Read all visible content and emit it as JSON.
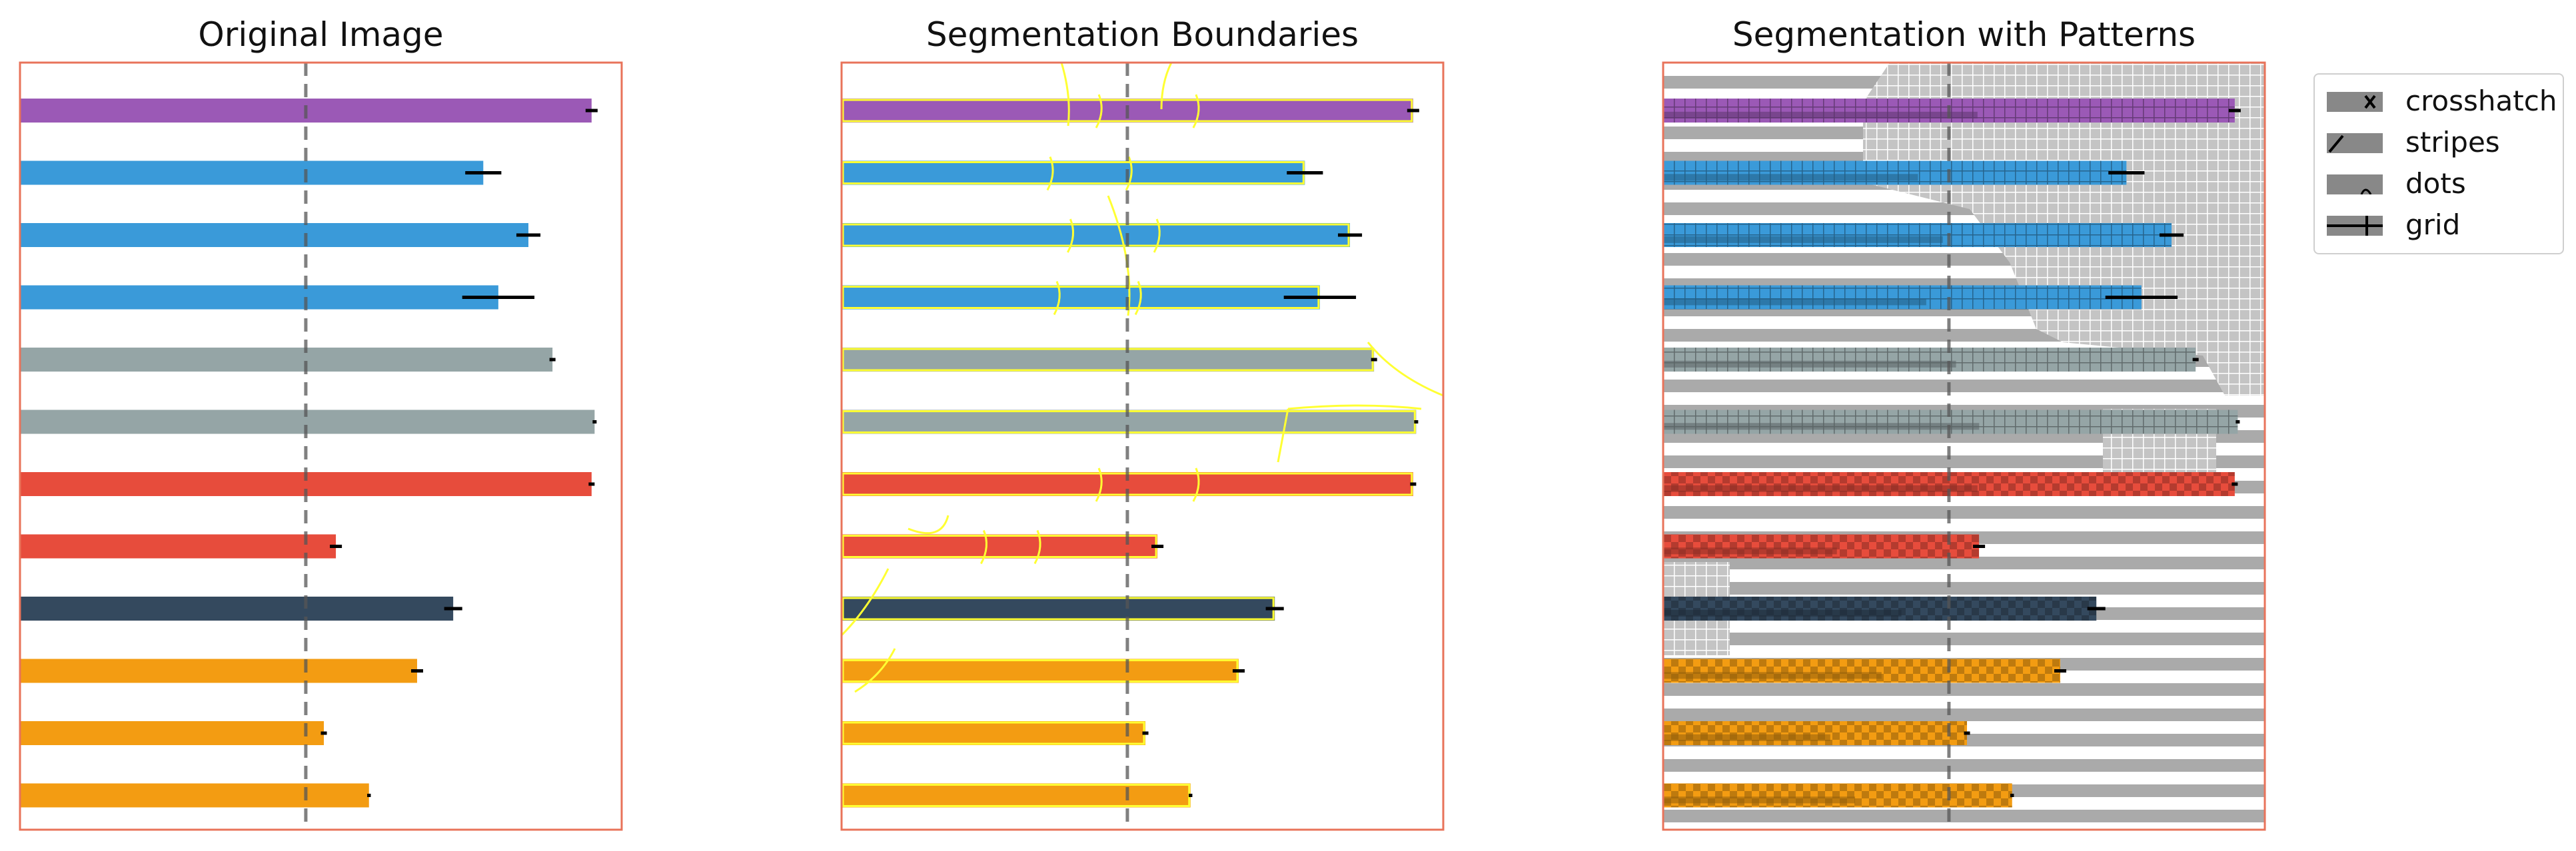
{
  "chart_data": [
    {
      "type": "bar",
      "orientation": "horizontal",
      "title": "Original Image",
      "xlim": [
        0,
        100
      ],
      "reference_line": 47.5,
      "border_color": "#e8735a",
      "bars": [
        {
          "value": 95,
          "error": 1,
          "color": "#9b59b6"
        },
        {
          "value": 77,
          "error": 3,
          "color": "#3a9ad9"
        },
        {
          "value": 84.5,
          "error": 2,
          "color": "#3a9ad9"
        },
        {
          "value": 79.5,
          "error": 6,
          "color": "#3a9ad9"
        },
        {
          "value": 88.5,
          "error": 0.5,
          "color": "#95a5a6"
        },
        {
          "value": 95.5,
          "error": 0,
          "color": "#95a5a6"
        },
        {
          "value": 95,
          "error": 0.5,
          "color": "#e74c3c"
        },
        {
          "value": 52.5,
          "error": 1,
          "color": "#e74c3c"
        },
        {
          "value": 72,
          "error": 1.5,
          "color": "#34495e"
        },
        {
          "value": 66,
          "error": 1,
          "color": "#f39c12"
        },
        {
          "value": 50.5,
          "error": 0.5,
          "color": "#f39c12"
        },
        {
          "value": 58,
          "error": 0.3,
          "color": "#f39c12"
        }
      ]
    },
    {
      "type": "bar",
      "orientation": "horizontal",
      "title": "Segmentation Boundaries",
      "xlim": [
        0,
        100
      ],
      "reference_line": 47.5,
      "overlay": "segment boundaries",
      "boundary_color": "#ffff33",
      "border_color": "#e8735a",
      "bars": [
        {
          "value": 95,
          "error": 1,
          "color": "#9b59b6"
        },
        {
          "value": 77,
          "error": 3,
          "color": "#3a9ad9"
        },
        {
          "value": 84.5,
          "error": 2,
          "color": "#3a9ad9"
        },
        {
          "value": 79.5,
          "error": 6,
          "color": "#3a9ad9"
        },
        {
          "value": 88.5,
          "error": 0.5,
          "color": "#95a5a6"
        },
        {
          "value": 95.5,
          "error": 0,
          "color": "#95a5a6"
        },
        {
          "value": 95,
          "error": 0.5,
          "color": "#e74c3c"
        },
        {
          "value": 52.5,
          "error": 1,
          "color": "#e74c3c"
        },
        {
          "value": 72,
          "error": 1.5,
          "color": "#34495e"
        },
        {
          "value": 66,
          "error": 1,
          "color": "#f39c12"
        },
        {
          "value": 50.5,
          "error": 0.5,
          "color": "#f39c12"
        },
        {
          "value": 58,
          "error": 0.3,
          "color": "#f39c12"
        }
      ]
    },
    {
      "type": "bar",
      "orientation": "horizontal",
      "title": "Segmentation with Patterns",
      "xlim": [
        0,
        100
      ],
      "reference_line": 47.5,
      "overlay": "patterns",
      "border_color": "#e8735a",
      "legend": {
        "position": "outside-right",
        "entries": [
          "crosshatch",
          "stripes",
          "dots",
          "grid"
        ]
      },
      "bars": [
        {
          "value": 95,
          "error": 1,
          "color": "#9b59b6"
        },
        {
          "value": 77,
          "error": 3,
          "color": "#3a9ad9"
        },
        {
          "value": 84.5,
          "error": 2,
          "color": "#3a9ad9"
        },
        {
          "value": 79.5,
          "error": 6,
          "color": "#3a9ad9"
        },
        {
          "value": 88.5,
          "error": 0.5,
          "color": "#95a5a6"
        },
        {
          "value": 95.5,
          "error": 0,
          "color": "#95a5a6"
        },
        {
          "value": 95,
          "error": 0.5,
          "color": "#e74c3c"
        },
        {
          "value": 52.5,
          "error": 1,
          "color": "#e74c3c"
        },
        {
          "value": 72,
          "error": 1.5,
          "color": "#34495e"
        },
        {
          "value": 66,
          "error": 1,
          "color": "#f39c12"
        },
        {
          "value": 50.5,
          "error": 0.5,
          "color": "#f39c12"
        },
        {
          "value": 58,
          "error": 0.3,
          "color": "#f39c12"
        }
      ]
    }
  ]
}
